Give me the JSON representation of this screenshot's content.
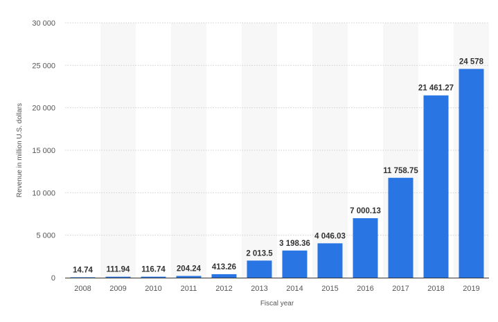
{
  "chart_data": {
    "type": "bar",
    "title": "",
    "xlabel": "Fiscal year",
    "ylabel": "Revenue in million U.S. dollars",
    "categories": [
      "2008",
      "2009",
      "2010",
      "2011",
      "2012",
      "2013",
      "2014",
      "2015",
      "2016",
      "2017",
      "2018",
      "2019"
    ],
    "values": [
      14.74,
      111.94,
      116.74,
      204.24,
      413.26,
      2013.5,
      3198.36,
      4046.03,
      7000.13,
      11758.75,
      21461.27,
      24578
    ],
    "value_labels": [
      "14.74",
      "111.94",
      "116.74",
      "204.24",
      "413.26",
      "2 013.5",
      "3 198.36",
      "4 046.03",
      "7 000.13",
      "11 758.75",
      "21 461.27",
      "24 578"
    ],
    "ylim": [
      0,
      30000
    ],
    "yticks": [
      0,
      5000,
      10000,
      15000,
      20000,
      25000,
      30000
    ],
    "ytick_labels": [
      "0",
      "5 000",
      "10 000",
      "15 000",
      "20 000",
      "25 000",
      "30 000"
    ],
    "grid": true,
    "legend": "none",
    "colors": {
      "bar": "#2875e3",
      "band": "#f7f7f7",
      "grid": "#cfcfcf"
    }
  }
}
